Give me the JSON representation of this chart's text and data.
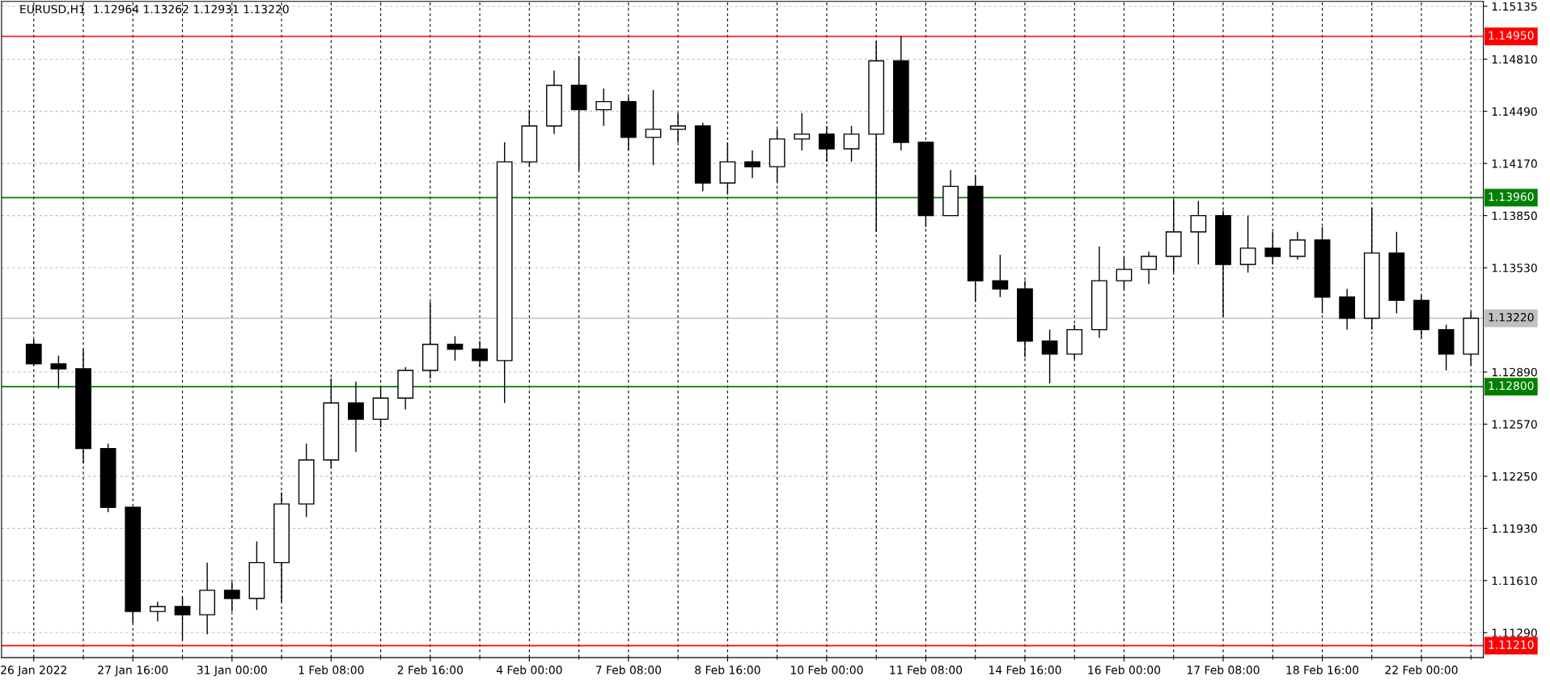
{
  "chart_data": {
    "type": "candlestick",
    "title": "EURUSD,H1  1.12964 1.13262 1.12931 1.13220",
    "categories": [
      "26 Jan 2022",
      null,
      null,
      null,
      "27 Jan 16:00",
      null,
      null,
      null,
      "31 Jan 00:00",
      null,
      null,
      null,
      "1 Feb 08:00",
      null,
      null,
      null,
      "2 Feb 16:00",
      null,
      null,
      null,
      "4 Feb 00:00",
      null,
      null,
      null,
      "7 Feb 08:00",
      null,
      null,
      null,
      "8 Feb 16:00",
      null,
      null,
      null,
      "10 Feb 00:00",
      null,
      null,
      null,
      "11 Feb 08:00",
      null,
      null,
      null,
      "14 Feb 16:00",
      null,
      null,
      null,
      "16 Feb 00:00",
      null,
      null,
      null,
      "17 Feb 08:00",
      null,
      null,
      null,
      "18 Feb 16:00",
      null,
      null,
      null,
      "22 Feb 00:00",
      null,
      null
    ],
    "series": [
      {
        "color": "#000000",
        "ohlc": [
          [
            1.1306,
            1.1309,
            1.1293,
            1.1294
          ],
          [
            1.1294,
            1.1299,
            1.1279,
            1.1291
          ],
          [
            1.1291,
            1.1303,
            1.1233,
            1.1242
          ],
          [
            1.1242,
            1.1245,
            1.1203,
            1.1206
          ],
          [
            1.1206,
            1.1206,
            1.1135,
            1.1142
          ],
          [
            1.1142,
            1.1148,
            1.1136,
            1.1145
          ],
          [
            1.1145,
            1.1151,
            1.1124,
            1.114
          ],
          [
            1.114,
            1.1172,
            1.1128,
            1.1155
          ],
          [
            1.1155,
            1.116,
            1.1142,
            1.115
          ],
          [
            1.115,
            1.1185,
            1.1143,
            1.1172
          ],
          [
            1.1172,
            1.1215,
            1.1148,
            1.1208
          ],
          [
            1.1208,
            1.1245,
            1.12,
            1.1235
          ],
          [
            1.1235,
            1.1285,
            1.123,
            1.127
          ],
          [
            1.127,
            1.1283,
            1.124,
            1.126
          ],
          [
            1.126,
            1.128,
            1.1255,
            1.1273
          ],
          [
            1.1273,
            1.1292,
            1.1266,
            1.129
          ],
          [
            1.129,
            1.1332,
            1.1285,
            1.1306
          ],
          [
            1.1306,
            1.1311,
            1.1296,
            1.1303
          ],
          [
            1.1303,
            1.1308,
            1.1292,
            1.1296
          ],
          [
            1.1296,
            1.143,
            1.127,
            1.1418
          ],
          [
            1.1418,
            1.145,
            1.1415,
            1.144
          ],
          [
            1.144,
            1.1474,
            1.1435,
            1.1465
          ],
          [
            1.1465,
            1.1483,
            1.1413,
            1.145
          ],
          [
            1.145,
            1.1463,
            1.144,
            1.1455
          ],
          [
            1.1455,
            1.1458,
            1.1425,
            1.1433
          ],
          [
            1.1433,
            1.1462,
            1.1416,
            1.1438
          ],
          [
            1.1438,
            1.1448,
            1.143,
            1.144
          ],
          [
            1.144,
            1.1442,
            1.14,
            1.1405
          ],
          [
            1.1405,
            1.143,
            1.1398,
            1.1418
          ],
          [
            1.1418,
            1.1425,
            1.1408,
            1.1415
          ],
          [
            1.1415,
            1.1438,
            1.1405,
            1.1432
          ],
          [
            1.1432,
            1.1448,
            1.1425,
            1.1435
          ],
          [
            1.1435,
            1.144,
            1.1418,
            1.1426
          ],
          [
            1.1426,
            1.144,
            1.1418,
            1.1435
          ],
          [
            1.1435,
            1.1492,
            1.1375,
            1.148
          ],
          [
            1.148,
            1.1495,
            1.1425,
            1.143
          ],
          [
            1.143,
            1.143,
            1.1378,
            1.1385
          ],
          [
            1.1385,
            1.1413,
            1.1385,
            1.1403
          ],
          [
            1.1403,
            1.141,
            1.1332,
            1.1345
          ],
          [
            1.1345,
            1.1361,
            1.1335,
            1.134
          ],
          [
            1.134,
            1.1345,
            1.1298,
            1.1308
          ],
          [
            1.1308,
            1.1315,
            1.1282,
            1.13
          ],
          [
            1.13,
            1.1318,
            1.1297,
            1.1315
          ],
          [
            1.1315,
            1.1366,
            1.131,
            1.1345
          ],
          [
            1.1345,
            1.136,
            1.134,
            1.1352
          ],
          [
            1.1352,
            1.1363,
            1.1343,
            1.136
          ],
          [
            1.136,
            1.1395,
            1.135,
            1.1375
          ],
          [
            1.1375,
            1.1394,
            1.1355,
            1.1385
          ],
          [
            1.1385,
            1.1388,
            1.1323,
            1.1355
          ],
          [
            1.1355,
            1.1385,
            1.135,
            1.1365
          ],
          [
            1.1365,
            1.1375,
            1.1355,
            1.136
          ],
          [
            1.136,
            1.1375,
            1.1358,
            1.137
          ],
          [
            1.137,
            1.1378,
            1.1325,
            1.1335
          ],
          [
            1.1335,
            1.134,
            1.1315,
            1.1322
          ],
          [
            1.1322,
            1.139,
            1.1315,
            1.1362
          ],
          [
            1.1362,
            1.1375,
            1.1325,
            1.1333
          ],
          [
            1.1333,
            1.1336,
            1.131,
            1.1315
          ],
          [
            1.1315,
            1.1318,
            1.129,
            1.13
          ],
          [
            1.13,
            1.1326,
            1.1293,
            1.1322
          ]
        ]
      }
    ],
    "ylim": [
      1.11137,
      1.15165
    ],
    "yticks": [
      1.15135,
      {
        "value": 1.1481,
        "label": "1.14810"
      },
      {
        "value": 1.1449,
        "label": "1.14490"
      },
      {
        "value": 1.1417,
        "label": "1.14170"
      },
      {
        "value": 1.1385,
        "label": "1.13850"
      },
      {
        "value": 1.1353,
        "label": "1.13530"
      },
      {
        "value": 1.1289,
        "label": "1.12890"
      },
      {
        "value": 1.1257,
        "label": "1.12570"
      },
      {
        "value": 1.1225,
        "label": "1.12250"
      },
      {
        "value": 1.1193,
        "label": "1.11930"
      },
      {
        "value": 1.1161,
        "label": "1.11610"
      },
      {
        "value": 1.1129,
        "label": "1.11290"
      }
    ],
    "grid": true,
    "ref_lines": [
      {
        "axis": "y",
        "value": 1.1495,
        "label": "1.14950",
        "color": "#ff0000"
      },
      {
        "axis": "y",
        "value": 1.1396,
        "label": "1.13960",
        "color": "#008000"
      },
      {
        "axis": "y",
        "value": 1.1322,
        "label": "1.13220",
        "color": "#c0c0c0"
      },
      {
        "axis": "y",
        "value": 1.128,
        "label": "1.12800",
        "color": "#008000"
      },
      {
        "axis": "y",
        "value": 1.1121,
        "label": "1.11210",
        "color": "#ff0000"
      }
    ]
  }
}
